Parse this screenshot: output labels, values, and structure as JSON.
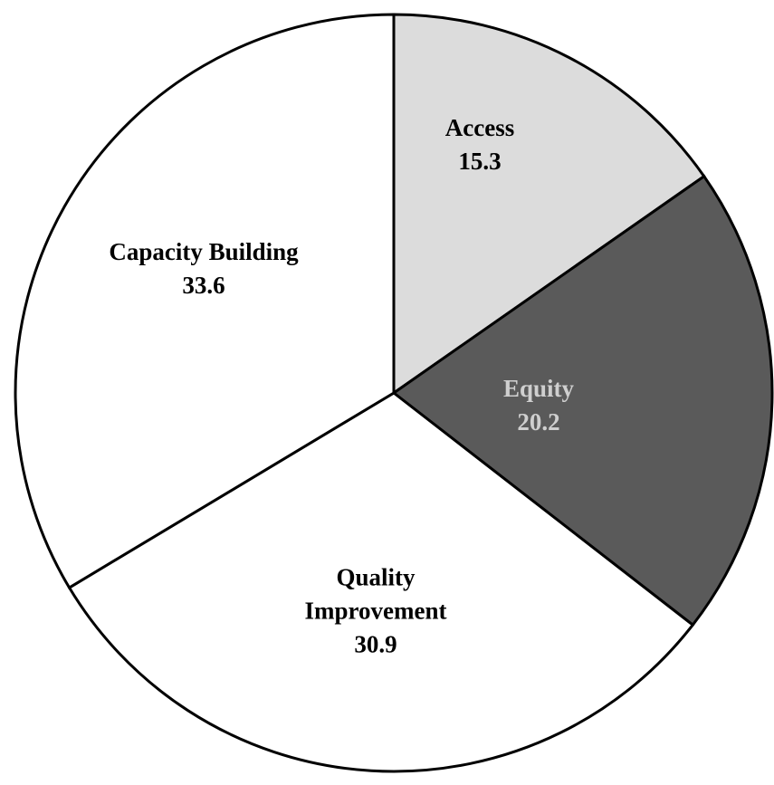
{
  "chart_data": {
    "type": "pie",
    "categories": [
      "Access",
      "Equity",
      "Quality Improvement",
      "Capacity Building"
    ],
    "values": [
      15.3,
      20.2,
      30.9,
      33.6
    ],
    "colors": [
      "#dcdcdc",
      "#5a5a5a",
      "#ffffff",
      "#ffffff"
    ],
    "label_colors": [
      "#000000",
      "#cfcfcf",
      "#000000",
      "#000000"
    ]
  }
}
